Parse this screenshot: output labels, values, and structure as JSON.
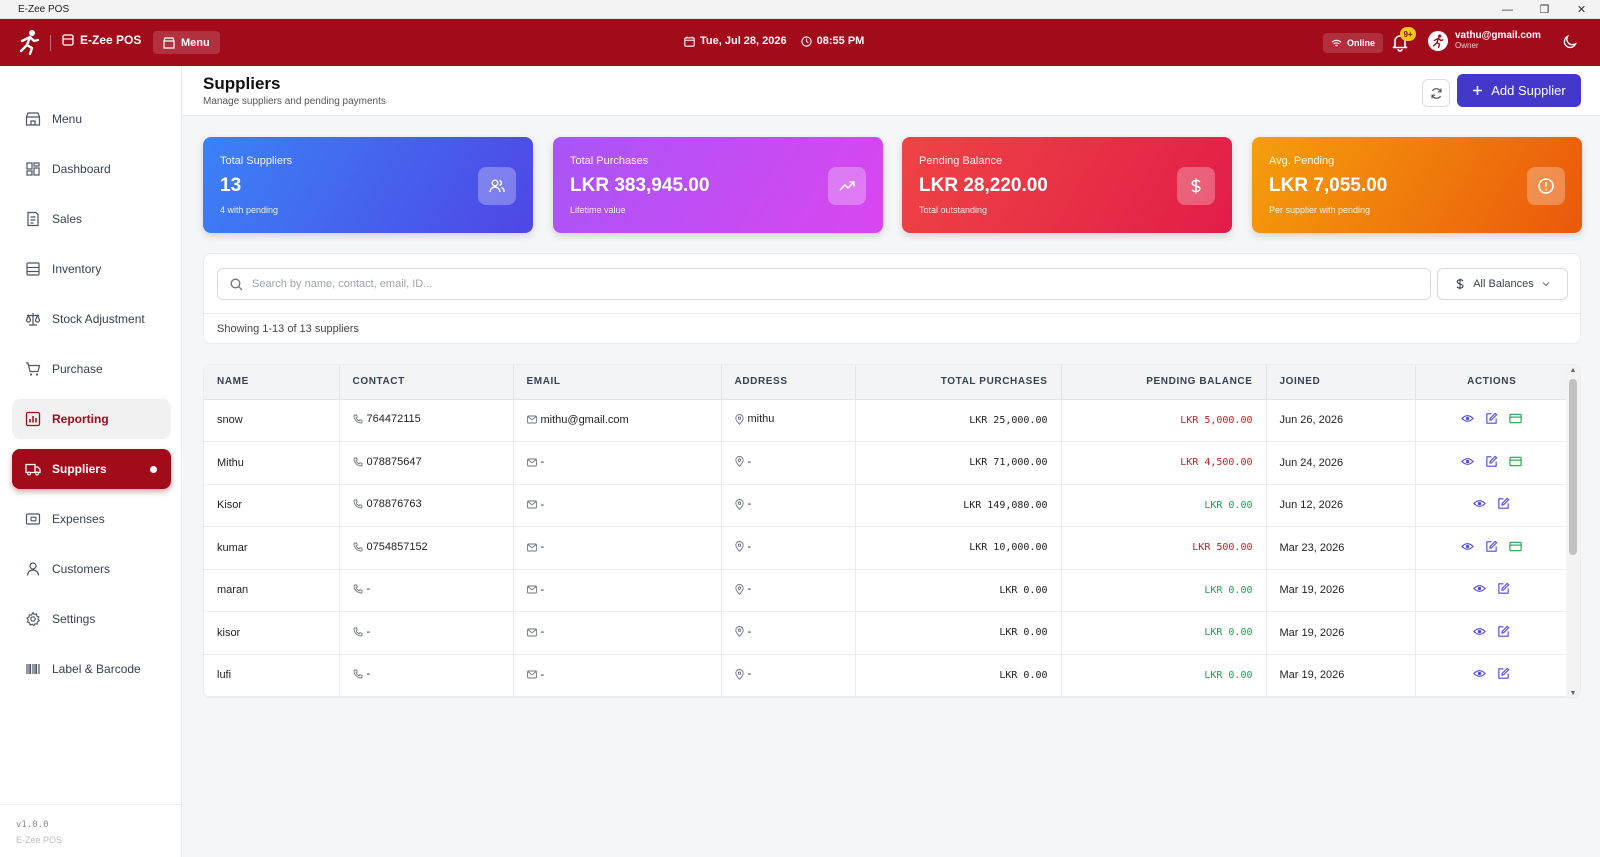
{
  "window": {
    "title": "E-Zee POS"
  },
  "header": {
    "brand": "E-Zee POS",
    "menu_label": "Menu",
    "date": "Tue, Jul 28, 2026",
    "time": "08:55 PM",
    "status": "Online",
    "notifications": "9+",
    "user_email": "vathu@gmail.com",
    "user_role": "Owner"
  },
  "sidebar": {
    "items": [
      {
        "label": "Menu",
        "icon": "store-icon"
      },
      {
        "label": "Dashboard",
        "icon": "grid-icon"
      },
      {
        "label": "Sales",
        "icon": "receipt-icon"
      },
      {
        "label": "Inventory",
        "icon": "box-icon"
      },
      {
        "label": "Stock Adjustment",
        "icon": "scale-icon"
      },
      {
        "label": "Purchase",
        "icon": "cart-icon"
      },
      {
        "label": "Reporting",
        "icon": "chart-icon"
      },
      {
        "label": "Suppliers",
        "icon": "truck-icon"
      },
      {
        "label": "Expenses",
        "icon": "wallet-icon"
      },
      {
        "label": "Customers",
        "icon": "user-icon"
      },
      {
        "label": "Settings",
        "icon": "gear-icon"
      },
      {
        "label": "Label & Barcode",
        "icon": "barcode-icon"
      }
    ],
    "version": "v1.0.0",
    "app_name": "E-Zee POS"
  },
  "page": {
    "title": "Suppliers",
    "subtitle": "Manage suppliers and pending payments",
    "add_label": "Add Supplier"
  },
  "stats": [
    {
      "label": "Total Suppliers",
      "value": "13",
      "note": "4 with pending"
    },
    {
      "label": "Total Purchases",
      "value": "LKR 383,945.00",
      "note": "Lifetime value"
    },
    {
      "label": "Pending Balance",
      "value": "LKR 28,220.00",
      "note": "Total outstanding"
    },
    {
      "label": "Avg. Pending",
      "value": "LKR 7,055.00",
      "note": "Per supplier with pending"
    }
  ],
  "search": {
    "placeholder": "Search by name, contact, email, ID...",
    "balance_filter": "All Balances",
    "showing": "Showing 1-13 of 13 suppliers"
  },
  "table": {
    "columns": [
      "NAME",
      "CONTACT",
      "EMAIL",
      "ADDRESS",
      "TOTAL PURCHASES",
      "PENDING BALANCE",
      "JOINED",
      "ACTIONS"
    ],
    "rows": [
      {
        "name": "snow",
        "contact": "764472115",
        "email": "mithu@gmail.com",
        "address": "mithu",
        "total": "LKR 25,000.00",
        "pending": "LKR 5,000.00",
        "joined": "Jun 26, 2026"
      },
      {
        "name": "Mithu",
        "contact": "078875647",
        "email": "-",
        "address": "-",
        "total": "LKR 71,000.00",
        "pending": "LKR 4,500.00",
        "joined": "Jun 24, 2026"
      },
      {
        "name": "Kisor",
        "contact": "078876763",
        "email": "-",
        "address": "-",
        "total": "LKR 149,080.00",
        "pending": "LKR 0.00",
        "joined": "Jun 12, 2026"
      },
      {
        "name": "kumar",
        "contact": "0754857152",
        "email": "-",
        "address": "-",
        "total": "LKR 10,000.00",
        "pending": "LKR 500.00",
        "joined": "Mar 23, 2026"
      },
      {
        "name": "maran",
        "contact": "-",
        "email": "-",
        "address": "-",
        "total": "LKR 0.00",
        "pending": "LKR 0.00",
        "joined": "Mar 19, 2026"
      },
      {
        "name": "kisor",
        "contact": "-",
        "email": "-",
        "address": "-",
        "total": "LKR 0.00",
        "pending": "LKR 0.00",
        "joined": "Mar 19, 2026"
      },
      {
        "name": "lufi",
        "contact": "-",
        "email": "-",
        "address": "-",
        "total": "LKR 0.00",
        "pending": "LKR 0.00",
        "joined": "Mar 19, 2026"
      }
    ]
  },
  "colors": {
    "brand": "#a20b1a",
    "primary_button": "#4338ca",
    "pending_positive": "#c81e1e",
    "pending_zero": "#16a34a"
  }
}
